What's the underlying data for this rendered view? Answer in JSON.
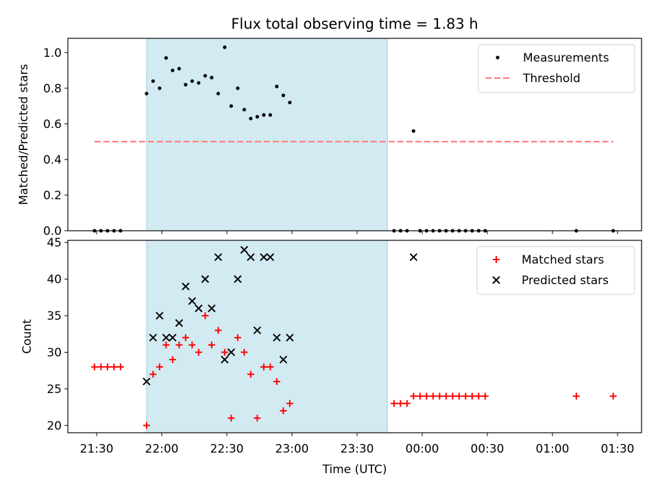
{
  "chart_data": [
    {
      "type": "scatter",
      "title": "Flux total observing time = 1.83 h",
      "ylabel": "Matched/Predicted stars",
      "xlabel": "",
      "ylim": [
        0,
        1.08
      ],
      "yticks": [
        "0.0",
        "0.2",
        "0.4",
        "0.6",
        "0.8",
        "1.0"
      ],
      "shaded_span": [
        "21:53",
        "23:44"
      ],
      "shaded_color": "#add8e6",
      "legend": {
        "placement": "top-right",
        "entries": [
          "Measurements",
          "Threshold"
        ]
      },
      "series": [
        {
          "name": "Measurements",
          "marker": "dot",
          "color": "#000000",
          "points": [
            [
              "21:29",
              0
            ],
            [
              "21:32",
              0
            ],
            [
              "21:35",
              0
            ],
            [
              "21:38",
              0
            ],
            [
              "21:41",
              0
            ],
            [
              "21:53",
              0.77
            ],
            [
              "21:56",
              0.84
            ],
            [
              "21:59",
              0.8
            ],
            [
              "22:02",
              0.97
            ],
            [
              "22:05",
              0.9
            ],
            [
              "22:08",
              0.91
            ],
            [
              "22:11",
              0.82
            ],
            [
              "22:14",
              0.84
            ],
            [
              "22:17",
              0.83
            ],
            [
              "22:20",
              0.87
            ],
            [
              "22:23",
              0.86
            ],
            [
              "22:26",
              0.77
            ],
            [
              "22:29",
              1.03
            ],
            [
              "22:32",
              0.7
            ],
            [
              "22:35",
              0.8
            ],
            [
              "22:38",
              0.68
            ],
            [
              "22:41",
              0.63
            ],
            [
              "22:44",
              0.64
            ],
            [
              "22:47",
              0.65
            ],
            [
              "22:50",
              0.65
            ],
            [
              "22:53",
              0.81
            ],
            [
              "22:56",
              0.76
            ],
            [
              "22:59",
              0.72
            ],
            [
              "23:47",
              0
            ],
            [
              "23:50",
              0
            ],
            [
              "23:53",
              0
            ],
            [
              "23:56",
              0.56
            ],
            [
              "23:59",
              0
            ],
            [
              "00:02",
              0
            ],
            [
              "00:05",
              0
            ],
            [
              "00:08",
              0
            ],
            [
              "00:11",
              0
            ],
            [
              "00:14",
              0
            ],
            [
              "00:17",
              0
            ],
            [
              "00:20",
              0
            ],
            [
              "00:23",
              0
            ],
            [
              "00:26",
              0
            ],
            [
              "00:29",
              0
            ],
            [
              "01:11",
              0
            ],
            [
              "01:28",
              0
            ]
          ]
        },
        {
          "name": "Threshold",
          "marker": "dashed-line",
          "color": "#ff7f7f",
          "points": [
            [
              "21:29",
              0.5
            ],
            [
              "01:28",
              0.5
            ]
          ]
        }
      ]
    },
    {
      "type": "scatter",
      "title": "",
      "ylabel": "Count",
      "xlabel": "Time (UTC)",
      "ylim": [
        19,
        45.3
      ],
      "yticks": [
        "20",
        "25",
        "30",
        "35",
        "40",
        "45"
      ],
      "xticks": [
        "21:30",
        "22:00",
        "22:30",
        "23:00",
        "23:30",
        "00:00",
        "00:30",
        "01:00",
        "01:30"
      ],
      "shaded_span": [
        "21:53",
        "23:44"
      ],
      "shaded_color": "#add8e6",
      "legend": {
        "placement": "top-right",
        "entries": [
          "Matched stars",
          "Predicted stars"
        ]
      },
      "series": [
        {
          "name": "Matched stars",
          "marker": "plus",
          "color": "#ff0000",
          "points": [
            [
              "21:29",
              28
            ],
            [
              "21:32",
              28
            ],
            [
              "21:35",
              28
            ],
            [
              "21:38",
              28
            ],
            [
              "21:41",
              28
            ],
            [
              "21:53",
              20
            ],
            [
              "21:56",
              27
            ],
            [
              "21:59",
              28
            ],
            [
              "22:02",
              31
            ],
            [
              "22:05",
              29
            ],
            [
              "22:08",
              31
            ],
            [
              "22:11",
              32
            ],
            [
              "22:14",
              31
            ],
            [
              "22:17",
              30
            ],
            [
              "22:20",
              35
            ],
            [
              "22:23",
              31
            ],
            [
              "22:26",
              33
            ],
            [
              "22:29",
              30
            ],
            [
              "22:32",
              21
            ],
            [
              "22:35",
              32
            ],
            [
              "22:38",
              30
            ],
            [
              "22:41",
              27
            ],
            [
              "22:44",
              21
            ],
            [
              "22:47",
              28
            ],
            [
              "22:50",
              28
            ],
            [
              "22:53",
              26
            ],
            [
              "22:56",
              22
            ],
            [
              "22:59",
              23
            ],
            [
              "23:47",
              23
            ],
            [
              "23:50",
              23
            ],
            [
              "23:53",
              23
            ],
            [
              "23:56",
              24
            ],
            [
              "23:59",
              24
            ],
            [
              "00:02",
              24
            ],
            [
              "00:05",
              24
            ],
            [
              "00:08",
              24
            ],
            [
              "00:11",
              24
            ],
            [
              "00:14",
              24
            ],
            [
              "00:17",
              24
            ],
            [
              "00:20",
              24
            ],
            [
              "00:23",
              24
            ],
            [
              "00:26",
              24
            ],
            [
              "00:29",
              24
            ],
            [
              "01:11",
              24
            ],
            [
              "01:28",
              24
            ]
          ]
        },
        {
          "name": "Predicted stars",
          "marker": "x",
          "color": "#000000",
          "points": [
            [
              "21:53",
              26
            ],
            [
              "21:56",
              32
            ],
            [
              "21:59",
              35
            ],
            [
              "22:02",
              32
            ],
            [
              "22:05",
              32
            ],
            [
              "22:08",
              34
            ],
            [
              "22:11",
              39
            ],
            [
              "22:14",
              37
            ],
            [
              "22:17",
              36
            ],
            [
              "22:20",
              40
            ],
            [
              "22:23",
              36
            ],
            [
              "22:26",
              43
            ],
            [
              "22:29",
              29
            ],
            [
              "22:32",
              30
            ],
            [
              "22:35",
              40
            ],
            [
              "22:38",
              44
            ],
            [
              "22:41",
              43
            ],
            [
              "22:44",
              33
            ],
            [
              "22:47",
              43
            ],
            [
              "22:50",
              43
            ],
            [
              "22:53",
              32
            ],
            [
              "22:56",
              29
            ],
            [
              "22:59",
              32
            ],
            [
              "23:56",
              43
            ]
          ]
        }
      ]
    }
  ]
}
